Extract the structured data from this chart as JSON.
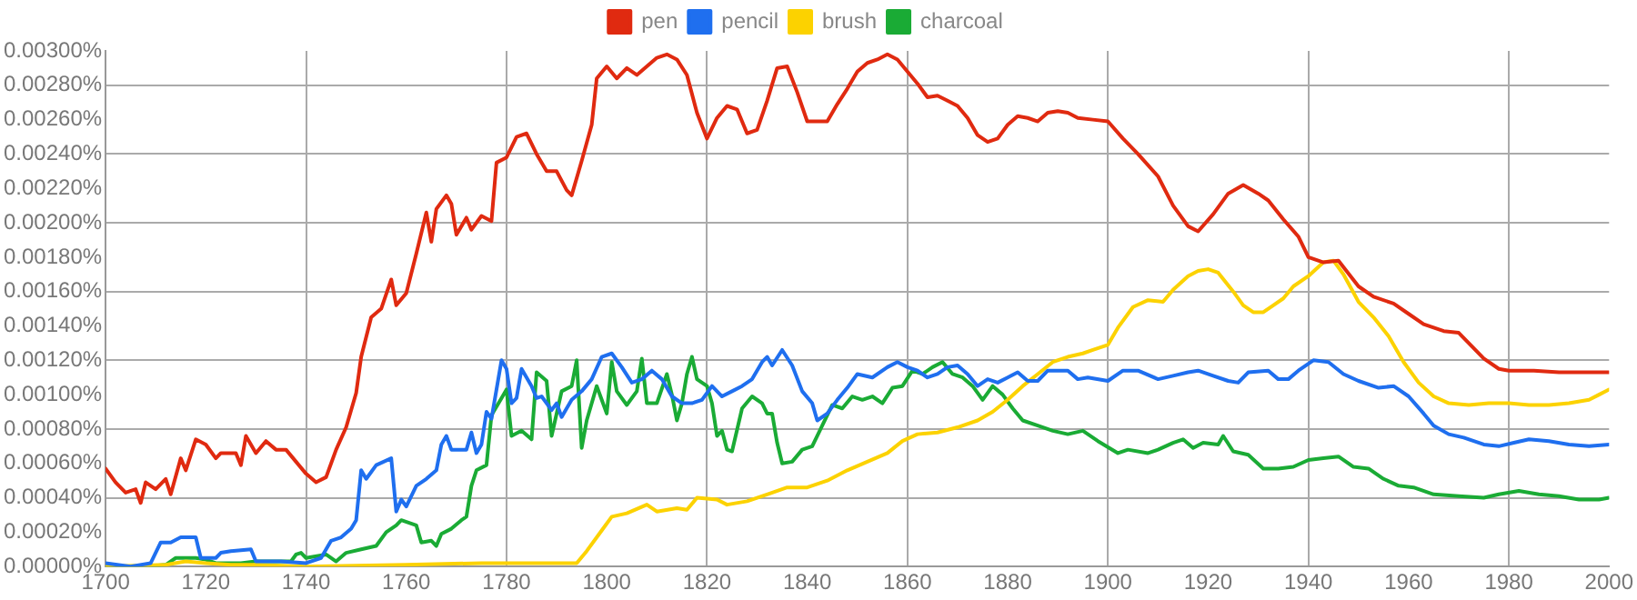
{
  "chart_data": {
    "type": "line",
    "xlim": [
      1700,
      2000
    ],
    "xticks": [
      1700,
      1720,
      1740,
      1760,
      1780,
      1800,
      1820,
      1840,
      1860,
      1880,
      1900,
      1920,
      1940,
      1960,
      1980,
      2000
    ],
    "ylim": [
      0,
      0.003
    ],
    "yticks": [
      {
        "value": 0,
        "label": "0.00000%"
      },
      {
        "value": 0.0002,
        "label": "0.00020%"
      },
      {
        "value": 0.0004,
        "label": "0.00040%"
      },
      {
        "value": 0.0006,
        "label": "0.00060%"
      },
      {
        "value": 0.0008,
        "label": "0.00080%"
      },
      {
        "value": 0.001,
        "label": "0.00100%"
      },
      {
        "value": 0.0012,
        "label": "0.00120%"
      },
      {
        "value": 0.0014,
        "label": "0.00140%"
      },
      {
        "value": 0.0016,
        "label": "0.00160%"
      },
      {
        "value": 0.0018,
        "label": "0.00180%"
      },
      {
        "value": 0.002,
        "label": "0.00200%"
      },
      {
        "value": 0.0022,
        "label": "0.00220%"
      },
      {
        "value": 0.0024,
        "label": "0.00240%"
      },
      {
        "value": 0.0026,
        "label": "0.00260%"
      },
      {
        "value": 0.0028,
        "label": "0.00280%"
      },
      {
        "value": 0.003,
        "label": "0.00300%"
      }
    ],
    "grid": true,
    "legend": "top",
    "marker": "none",
    "line_style": "solid",
    "series": [
      {
        "name": "pen",
        "color": "#e02a10",
        "x": [
          1700,
          1702,
          1704,
          1706,
          1707,
          1708,
          1710,
          1712,
          1713,
          1715,
          1716,
          1718,
          1720,
          1722,
          1723,
          1726,
          1727,
          1728,
          1730,
          1732,
          1734,
          1736,
          1738,
          1740,
          1742,
          1744,
          1746,
          1748,
          1750,
          1751,
          1753,
          1755,
          1757,
          1758,
          1760,
          1762,
          1764,
          1765,
          1766,
          1768,
          1769,
          1770,
          1772,
          1773,
          1775,
          1777,
          1778,
          1780,
          1782,
          1784,
          1786,
          1788,
          1790,
          1792,
          1793,
          1795,
          1797,
          1798,
          1800,
          1802,
          1804,
          1806,
          1808,
          1810,
          1812,
          1814,
          1816,
          1818,
          1820,
          1822,
          1824,
          1826,
          1828,
          1830,
          1832,
          1834,
          1836,
          1838,
          1840,
          1842,
          1844,
          1846,
          1848,
          1850,
          1852,
          1854,
          1856,
          1858,
          1860,
          1862,
          1864,
          1866,
          1868,
          1870,
          1872,
          1874,
          1876,
          1878,
          1880,
          1882,
          1884,
          1886,
          1888,
          1890,
          1892,
          1894,
          1897,
          1900,
          1903,
          1906,
          1910,
          1913,
          1916,
          1918,
          1921,
          1924,
          1927,
          1930,
          1932,
          1935,
          1938,
          1940,
          1943,
          1946,
          1950,
          1953,
          1957,
          1960,
          1963,
          1967,
          1970,
          1975,
          1978,
          1980,
          1985,
          1990,
          1995,
          2000
        ],
        "values": [
          0.00057,
          0.00049,
          0.00043,
          0.00045,
          0.00037,
          0.00049,
          0.00045,
          0.00051,
          0.00042,
          0.00063,
          0.00056,
          0.00074,
          0.00071,
          0.00063,
          0.00066,
          0.00066,
          0.00059,
          0.00076,
          0.00066,
          0.00073,
          0.00068,
          0.00068,
          0.00061,
          0.00054,
          0.00049,
          0.00052,
          0.00068,
          0.00081,
          0.00101,
          0.00122,
          0.00145,
          0.0015,
          0.00167,
          0.00152,
          0.00159,
          0.00182,
          0.00206,
          0.00189,
          0.00208,
          0.00216,
          0.00211,
          0.00193,
          0.00203,
          0.00196,
          0.00204,
          0.00201,
          0.00235,
          0.00238,
          0.0025,
          0.00252,
          0.0024,
          0.0023,
          0.0023,
          0.00219,
          0.00216,
          0.00236,
          0.00257,
          0.00284,
          0.00291,
          0.00284,
          0.0029,
          0.00286,
          0.00291,
          0.00296,
          0.00298,
          0.00295,
          0.00286,
          0.00264,
          0.00249,
          0.00261,
          0.00268,
          0.00266,
          0.00252,
          0.00254,
          0.00271,
          0.0029,
          0.00291,
          0.00276,
          0.00259,
          0.00259,
          0.00259,
          0.00269,
          0.00278,
          0.00288,
          0.00293,
          0.00295,
          0.00298,
          0.00295,
          0.00288,
          0.00281,
          0.00273,
          0.00274,
          0.00271,
          0.00268,
          0.00261,
          0.00251,
          0.00247,
          0.00249,
          0.00257,
          0.00262,
          0.00261,
          0.00259,
          0.00264,
          0.00265,
          0.00264,
          0.00261,
          0.0026,
          0.00259,
          0.00249,
          0.0024,
          0.00227,
          0.0021,
          0.00198,
          0.00195,
          0.00205,
          0.00217,
          0.00222,
          0.00217,
          0.00213,
          0.00202,
          0.00192,
          0.0018,
          0.00177,
          0.00178,
          0.00163,
          0.00157,
          0.00153,
          0.00147,
          0.00141,
          0.00137,
          0.00136,
          0.00121,
          0.00115,
          0.00114,
          0.00114,
          0.00113,
          0.00113,
          0.00113
        ]
      },
      {
        "name": "pencil",
        "color": "#1f6fef",
        "x": [
          1700,
          1705,
          1709,
          1711,
          1713,
          1715,
          1718,
          1719,
          1722,
          1723,
          1725,
          1729,
          1730,
          1735,
          1740,
          1743,
          1745,
          1747,
          1749,
          1750,
          1751,
          1752,
          1754,
          1757,
          1758,
          1759,
          1760,
          1762,
          1764,
          1766,
          1767,
          1768,
          1769,
          1772,
          1773,
          1774,
          1775,
          1776,
          1777,
          1779,
          1780,
          1781,
          1782,
          1783,
          1785,
          1786,
          1787,
          1789,
          1790,
          1791,
          1793,
          1795,
          1797,
          1799,
          1801,
          1803,
          1805,
          1807,
          1809,
          1811,
          1813,
          1815,
          1817,
          1819,
          1821,
          1823,
          1825,
          1827,
          1829,
          1831,
          1832,
          1833,
          1835,
          1837,
          1839,
          1841,
          1842,
          1844,
          1846,
          1848,
          1850,
          1853,
          1856,
          1858,
          1860,
          1862,
          1864,
          1866,
          1868,
          1870,
          1872,
          1874,
          1876,
          1878,
          1880,
          1882,
          1884,
          1886,
          1888,
          1892,
          1894,
          1896,
          1900,
          1903,
          1906,
          1910,
          1913,
          1916,
          1918,
          1921,
          1924,
          1926,
          1928,
          1932,
          1934,
          1936,
          1938,
          1941,
          1944,
          1947,
          1950,
          1954,
          1957,
          1960,
          1963,
          1965,
          1968,
          1971,
          1975,
          1978,
          1981,
          1984,
          1988,
          1992,
          1996,
          2000
        ],
        "values": [
          2e-05,
          0,
          2e-05,
          0.00014,
          0.00014,
          0.00017,
          0.00017,
          5e-05,
          5e-05,
          8e-05,
          9e-05,
          0.0001,
          3e-05,
          3e-05,
          2e-05,
          5e-05,
          0.00015,
          0.00017,
          0.00022,
          0.00027,
          0.00056,
          0.00051,
          0.00059,
          0.00063,
          0.00032,
          0.00039,
          0.00035,
          0.00047,
          0.00051,
          0.00056,
          0.00071,
          0.00076,
          0.00068,
          0.00068,
          0.00078,
          0.00066,
          0.00071,
          0.0009,
          0.00086,
          0.0012,
          0.00115,
          0.00095,
          0.00098,
          0.00115,
          0.00105,
          0.00098,
          0.00099,
          0.00091,
          0.00095,
          0.00087,
          0.00097,
          0.00102,
          0.00109,
          0.00122,
          0.00124,
          0.00116,
          0.00107,
          0.00109,
          0.00114,
          0.00109,
          0.00099,
          0.00095,
          0.00095,
          0.00097,
          0.00105,
          0.00099,
          0.00102,
          0.00105,
          0.00109,
          0.00119,
          0.00122,
          0.00117,
          0.00126,
          0.00117,
          0.00102,
          0.00095,
          0.00085,
          0.00089,
          0.00097,
          0.00104,
          0.00112,
          0.0011,
          0.00116,
          0.00119,
          0.00116,
          0.00114,
          0.0011,
          0.00112,
          0.00116,
          0.00117,
          0.00112,
          0.00105,
          0.00109,
          0.00107,
          0.0011,
          0.00113,
          0.00108,
          0.00108,
          0.00114,
          0.00114,
          0.00109,
          0.0011,
          0.00108,
          0.00114,
          0.00114,
          0.00109,
          0.00111,
          0.00113,
          0.00114,
          0.00111,
          0.00108,
          0.00107,
          0.00113,
          0.00114,
          0.00109,
          0.00109,
          0.00114,
          0.0012,
          0.00119,
          0.00112,
          0.00108,
          0.00104,
          0.00105,
          0.00099,
          0.00089,
          0.00082,
          0.00077,
          0.00075,
          0.00071,
          0.0007,
          0.00072,
          0.00074,
          0.00073,
          0.00071,
          0.0007,
          0.00071
        ]
      },
      {
        "name": "brush",
        "color": "#fcd200",
        "x": [
          1700,
          1712,
          1716,
          1720,
          1725,
          1730,
          1740,
          1760,
          1775,
          1790,
          1794,
          1796,
          1799,
          1801,
          1804,
          1808,
          1810,
          1814,
          1816,
          1818,
          1822,
          1824,
          1828,
          1832,
          1836,
          1840,
          1844,
          1848,
          1852,
          1856,
          1859,
          1862,
          1866,
          1870,
          1874,
          1877,
          1880,
          1883,
          1886,
          1889,
          1892,
          1895,
          1897,
          1900,
          1902,
          1905,
          1908,
          1911,
          1913,
          1916,
          1918,
          1920,
          1922,
          1925,
          1927,
          1929,
          1931,
          1933,
          1935,
          1937,
          1940,
          1943,
          1945,
          1947,
          1950,
          1953,
          1956,
          1959,
          1962,
          1965,
          1968,
          1972,
          1976,
          1980,
          1984,
          1988,
          1992,
          1996,
          1998,
          2000
        ],
        "values": [
          0,
          1e-05,
          3e-05,
          2e-05,
          1e-05,
          1e-05,
          0,
          1e-05,
          2e-05,
          2e-05,
          2e-05,
          9e-05,
          0.00021,
          0.00029,
          0.00031,
          0.00036,
          0.00032,
          0.00034,
          0.00033,
          0.0004,
          0.00039,
          0.00036,
          0.00038,
          0.00042,
          0.00046,
          0.00046,
          0.0005,
          0.00056,
          0.00061,
          0.00066,
          0.00073,
          0.00077,
          0.00078,
          0.00081,
          0.00085,
          0.0009,
          0.00097,
          0.00105,
          0.00112,
          0.00119,
          0.00122,
          0.00124,
          0.00126,
          0.00129,
          0.00139,
          0.00151,
          0.00155,
          0.00154,
          0.00161,
          0.00169,
          0.00172,
          0.00173,
          0.00171,
          0.0016,
          0.00152,
          0.00148,
          0.00148,
          0.00152,
          0.00156,
          0.00163,
          0.00169,
          0.00177,
          0.00178,
          0.0017,
          0.00154,
          0.00145,
          0.00134,
          0.00119,
          0.00107,
          0.00099,
          0.00095,
          0.00094,
          0.00095,
          0.00095,
          0.00094,
          0.00094,
          0.00095,
          0.00097,
          0.001,
          0.00103
        ]
      },
      {
        "name": "charcoal",
        "color": "#1aab35",
        "x": [
          1700,
          1708,
          1712,
          1714,
          1718,
          1720,
          1722,
          1727,
          1730,
          1734,
          1737,
          1738,
          1739,
          1740,
          1744,
          1746,
          1748,
          1751,
          1754,
          1756,
          1758,
          1759,
          1762,
          1763,
          1765,
          1766,
          1767,
          1769,
          1771,
          1772,
          1773,
          1774,
          1776,
          1777,
          1779,
          1780,
          1781,
          1783,
          1785,
          1786,
          1788,
          1789,
          1791,
          1793,
          1794,
          1795,
          1796,
          1798,
          1799,
          1800,
          1801,
          1802,
          1804,
          1806,
          1807,
          1808,
          1810,
          1812,
          1813,
          1814,
          1815,
          1816,
          1817,
          1818,
          1820,
          1821,
          1822,
          1823,
          1824,
          1825,
          1827,
          1829,
          1831,
          1832,
          1833,
          1834,
          1835,
          1837,
          1839,
          1841,
          1843,
          1845,
          1847,
          1849,
          1851,
          1853,
          1855,
          1857,
          1859,
          1861,
          1863,
          1865,
          1867,
          1869,
          1871,
          1873,
          1875,
          1877,
          1879,
          1881,
          1883,
          1886,
          1889,
          1892,
          1895,
          1898,
          1902,
          1904,
          1908,
          1910,
          1913,
          1915,
          1917,
          1919,
          1922,
          1923,
          1925,
          1928,
          1931,
          1934,
          1937,
          1940,
          1943,
          1946,
          1949,
          1952,
          1955,
          1958,
          1961,
          1965,
          1970,
          1975,
          1978,
          1982,
          1986,
          1990,
          1994,
          1998,
          2000
        ],
        "values": [
          0,
          0,
          1e-05,
          5e-05,
          5e-05,
          4e-05,
          2e-05,
          2e-05,
          3e-05,
          3e-05,
          3e-05,
          7e-05,
          8e-05,
          5e-05,
          7e-05,
          3e-05,
          8e-05,
          0.0001,
          0.00012,
          0.0002,
          0.00024,
          0.00027,
          0.00024,
          0.00014,
          0.00015,
          0.00012,
          0.00019,
          0.00022,
          0.00027,
          0.00029,
          0.00047,
          0.00056,
          0.00059,
          0.00088,
          0.00098,
          0.00103,
          0.00076,
          0.00079,
          0.00074,
          0.00113,
          0.00108,
          0.00076,
          0.00102,
          0.00105,
          0.0012,
          0.00069,
          0.00085,
          0.00105,
          0.00097,
          0.00089,
          0.00119,
          0.00102,
          0.00094,
          0.00102,
          0.00121,
          0.00095,
          0.00095,
          0.00112,
          0.001,
          0.00085,
          0.00095,
          0.00112,
          0.00122,
          0.00109,
          0.00105,
          0.00095,
          0.00076,
          0.00079,
          0.00068,
          0.00067,
          0.00092,
          0.00099,
          0.00095,
          0.00089,
          0.00089,
          0.00072,
          0.0006,
          0.00061,
          0.00068,
          0.0007,
          0.00082,
          0.00094,
          0.00092,
          0.00099,
          0.00097,
          0.00099,
          0.00095,
          0.00104,
          0.00105,
          0.00114,
          0.00112,
          0.00116,
          0.00119,
          0.00112,
          0.0011,
          0.00105,
          0.00097,
          0.00105,
          0.001,
          0.00092,
          0.00085,
          0.00082,
          0.00079,
          0.00077,
          0.00079,
          0.00073,
          0.00066,
          0.00068,
          0.00066,
          0.00068,
          0.00072,
          0.00074,
          0.00069,
          0.00072,
          0.00071,
          0.00076,
          0.00067,
          0.00065,
          0.00057,
          0.00057,
          0.00058,
          0.00062,
          0.00063,
          0.00064,
          0.00058,
          0.00057,
          0.00051,
          0.00047,
          0.00046,
          0.00042,
          0.00041,
          0.0004,
          0.00042,
          0.00044,
          0.00042,
          0.00041,
          0.00039,
          0.00039,
          0.0004
        ]
      }
    ]
  }
}
